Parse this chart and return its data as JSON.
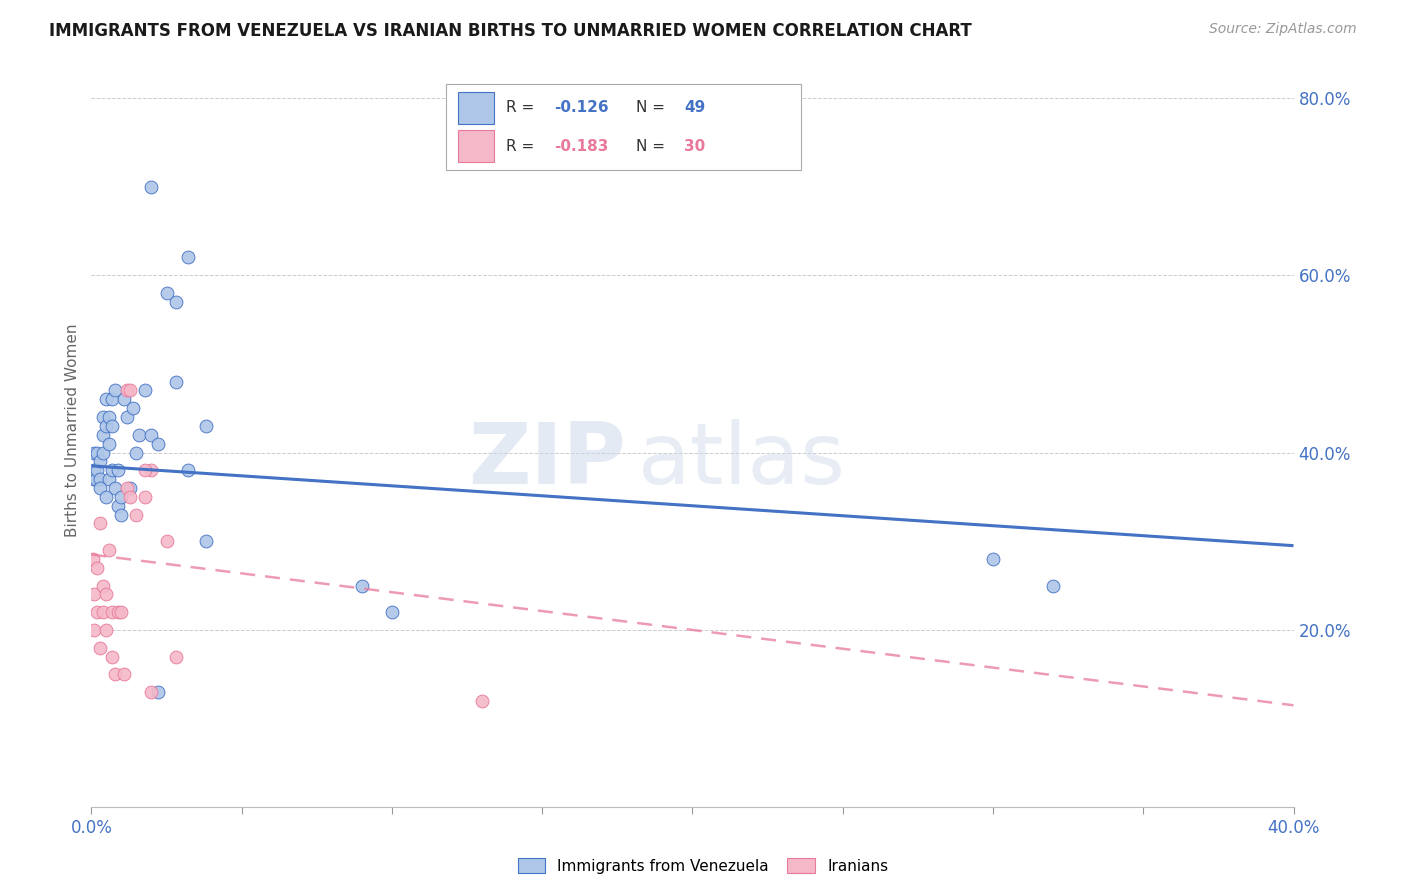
{
  "title": "IMMIGRANTS FROM VENEZUELA VS IRANIAN BIRTHS TO UNMARRIED WOMEN CORRELATION CHART",
  "source": "Source: ZipAtlas.com",
  "ylabel": "Births to Unmarried Women",
  "legend_blue_r": "-0.126",
  "legend_blue_n": "49",
  "legend_pink_r": "-0.183",
  "legend_pink_n": "30",
  "blue_color": "#aec6e8",
  "pink_color": "#f4b8c8",
  "line_blue": "#4472c4",
  "line_pink": "#e8799a",
  "watermark_zip": "ZIP",
  "watermark_atlas": "atlas",
  "blue_points_x": [
    0.0005,
    0.001,
    0.001,
    0.0015,
    0.002,
    0.002,
    0.003,
    0.003,
    0.003,
    0.004,
    0.004,
    0.004,
    0.005,
    0.005,
    0.005,
    0.006,
    0.006,
    0.006,
    0.007,
    0.007,
    0.007,
    0.008,
    0.008,
    0.009,
    0.009,
    0.01,
    0.01,
    0.011,
    0.012,
    0.013,
    0.014,
    0.015,
    0.016,
    0.018,
    0.02,
    0.022,
    0.025,
    0.028,
    0.032,
    0.038,
    0.02,
    0.028,
    0.032,
    0.038,
    0.09,
    0.1,
    0.3,
    0.32,
    0.022
  ],
  "blue_points_y": [
    0.37,
    0.38,
    0.4,
    0.37,
    0.38,
    0.4,
    0.37,
    0.39,
    0.36,
    0.4,
    0.44,
    0.42,
    0.43,
    0.46,
    0.35,
    0.44,
    0.41,
    0.37,
    0.43,
    0.46,
    0.38,
    0.36,
    0.47,
    0.34,
    0.38,
    0.33,
    0.35,
    0.46,
    0.44,
    0.36,
    0.45,
    0.4,
    0.42,
    0.47,
    0.42,
    0.41,
    0.58,
    0.57,
    0.62,
    0.43,
    0.7,
    0.48,
    0.38,
    0.3,
    0.25,
    0.22,
    0.28,
    0.25,
    0.13
  ],
  "pink_points_x": [
    0.0005,
    0.001,
    0.001,
    0.002,
    0.002,
    0.003,
    0.003,
    0.004,
    0.004,
    0.005,
    0.005,
    0.006,
    0.007,
    0.007,
    0.008,
    0.009,
    0.01,
    0.011,
    0.012,
    0.013,
    0.015,
    0.018,
    0.02,
    0.025,
    0.028,
    0.012,
    0.013,
    0.018,
    0.13,
    0.02
  ],
  "pink_points_y": [
    0.28,
    0.24,
    0.2,
    0.22,
    0.27,
    0.18,
    0.32,
    0.25,
    0.22,
    0.2,
    0.24,
    0.29,
    0.17,
    0.22,
    0.15,
    0.22,
    0.22,
    0.15,
    0.36,
    0.35,
    0.33,
    0.35,
    0.38,
    0.3,
    0.17,
    0.47,
    0.47,
    0.38,
    0.12,
    0.13
  ],
  "blue_line_x0": 0.0,
  "blue_line_x1": 0.4,
  "blue_line_y0": 0.385,
  "blue_line_y1": 0.295,
  "pink_line_x0": 0.0,
  "pink_line_x1": 0.4,
  "pink_line_y0": 0.285,
  "pink_line_y1": 0.115,
  "xlim": [
    0.0,
    0.4
  ],
  "ylim": [
    0.0,
    0.85
  ],
  "background_color": "#ffffff",
  "grid_color": "#cccccc",
  "right_yticks": [
    0.0,
    0.2,
    0.4,
    0.6,
    0.8
  ],
  "right_yticklabels": [
    "",
    "20.0%",
    "40.0%",
    "60.0%",
    "80.0%"
  ]
}
